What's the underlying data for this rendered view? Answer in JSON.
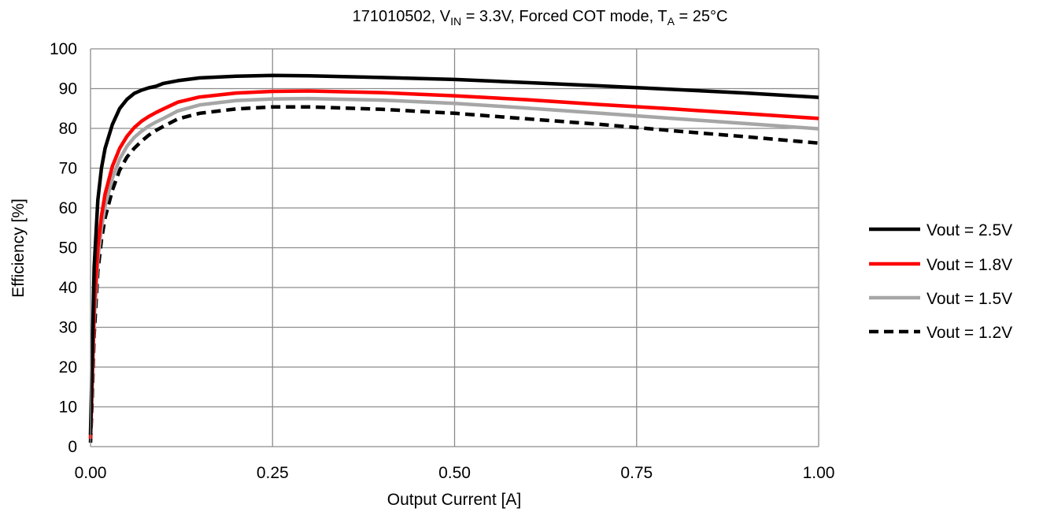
{
  "chart_data": {
    "type": "line",
    "title": {
      "part_device": "171010502, V",
      "sub_in": "IN",
      "part_mid": " = 3.3V, Forced COT mode, T",
      "sub_a": "A",
      "part_end": " = 25°C"
    },
    "xlabel": "Output Current [A]",
    "ylabel": "Efficiency [%]",
    "xlim": [
      0,
      1
    ],
    "ylim": [
      0,
      100
    ],
    "xticks": [
      0,
      0.25,
      0.5,
      0.75,
      1.0
    ],
    "xtick_labels": [
      "0.00",
      "0.25",
      "0.50",
      "0.75",
      "1.00"
    ],
    "yticks": [
      0,
      10,
      20,
      30,
      40,
      50,
      60,
      70,
      80,
      90,
      100
    ],
    "ytick_labels": [
      "0",
      "10",
      "20",
      "30",
      "40",
      "50",
      "60",
      "70",
      "80",
      "90",
      "100"
    ],
    "grid": true,
    "legend_position": "right",
    "series": [
      {
        "name": "Vout = 2.5V",
        "color": "#000000",
        "dash": "solid",
        "x": [
          0,
          0.002,
          0.005,
          0.01,
          0.015,
          0.02,
          0.03,
          0.04,
          0.05,
          0.06,
          0.07,
          0.08,
          0.09,
          0.1,
          0.12,
          0.15,
          0.2,
          0.25,
          0.3,
          0.4,
          0.5,
          0.6,
          0.7,
          0.8,
          0.9,
          1.0
        ],
        "y": [
          3,
          20,
          45,
          62,
          70,
          75,
          81,
          85,
          87.3,
          88.8,
          89.6,
          90.2,
          90.6,
          91.3,
          92,
          92.7,
          93.1,
          93.3,
          93.2,
          92.8,
          92.3,
          91.5,
          90.7,
          89.8,
          88.9,
          87.8
        ]
      },
      {
        "name": "Vout = 1.8V",
        "color": "#ff0000",
        "dash": "solid",
        "x": [
          0,
          0.002,
          0.005,
          0.01,
          0.015,
          0.02,
          0.03,
          0.04,
          0.05,
          0.06,
          0.07,
          0.08,
          0.09,
          0.1,
          0.12,
          0.15,
          0.2,
          0.25,
          0.3,
          0.4,
          0.5,
          0.6,
          0.7,
          0.8,
          0.9,
          1.0
        ],
        "y": [
          2,
          15,
          35,
          50,
          58,
          63.5,
          70.5,
          75,
          78,
          80.2,
          81.8,
          83,
          84,
          84.9,
          86.6,
          87.9,
          88.9,
          89.3,
          89.4,
          89,
          88.2,
          87.2,
          86,
          84.9,
          83.7,
          82.5
        ]
      },
      {
        "name": "Vout = 1.5V",
        "color": "#a6a6a6",
        "dash": "solid",
        "x": [
          0,
          0.002,
          0.005,
          0.01,
          0.015,
          0.02,
          0.03,
          0.04,
          0.05,
          0.06,
          0.07,
          0.08,
          0.09,
          0.1,
          0.12,
          0.15,
          0.2,
          0.25,
          0.3,
          0.4,
          0.5,
          0.6,
          0.7,
          0.8,
          0.9,
          1.0
        ],
        "y": [
          2,
          13,
          32,
          47,
          55,
          60.5,
          67.5,
          72.3,
          75.5,
          77.7,
          79.3,
          80.6,
          81.6,
          82.5,
          84.4,
          85.9,
          87,
          87.4,
          87.5,
          87.1,
          86.3,
          85.1,
          83.8,
          82.5,
          81.2,
          79.9
        ]
      },
      {
        "name": "Vout = 1.2V",
        "color": "#000000",
        "dash": "dashed",
        "x": [
          0,
          0.002,
          0.005,
          0.01,
          0.015,
          0.02,
          0.03,
          0.04,
          0.05,
          0.06,
          0.07,
          0.08,
          0.09,
          0.1,
          0.12,
          0.15,
          0.2,
          0.25,
          0.3,
          0.4,
          0.5,
          0.6,
          0.7,
          0.8,
          0.9,
          1.0
        ],
        "y": [
          1,
          10,
          28,
          44,
          52,
          57.5,
          64.5,
          69.5,
          72.8,
          75,
          76.8,
          78.3,
          79.5,
          80.5,
          82.4,
          83.8,
          84.9,
          85.4,
          85.4,
          84.8,
          83.8,
          82.4,
          81,
          79.4,
          77.9,
          76.3
        ]
      }
    ]
  }
}
